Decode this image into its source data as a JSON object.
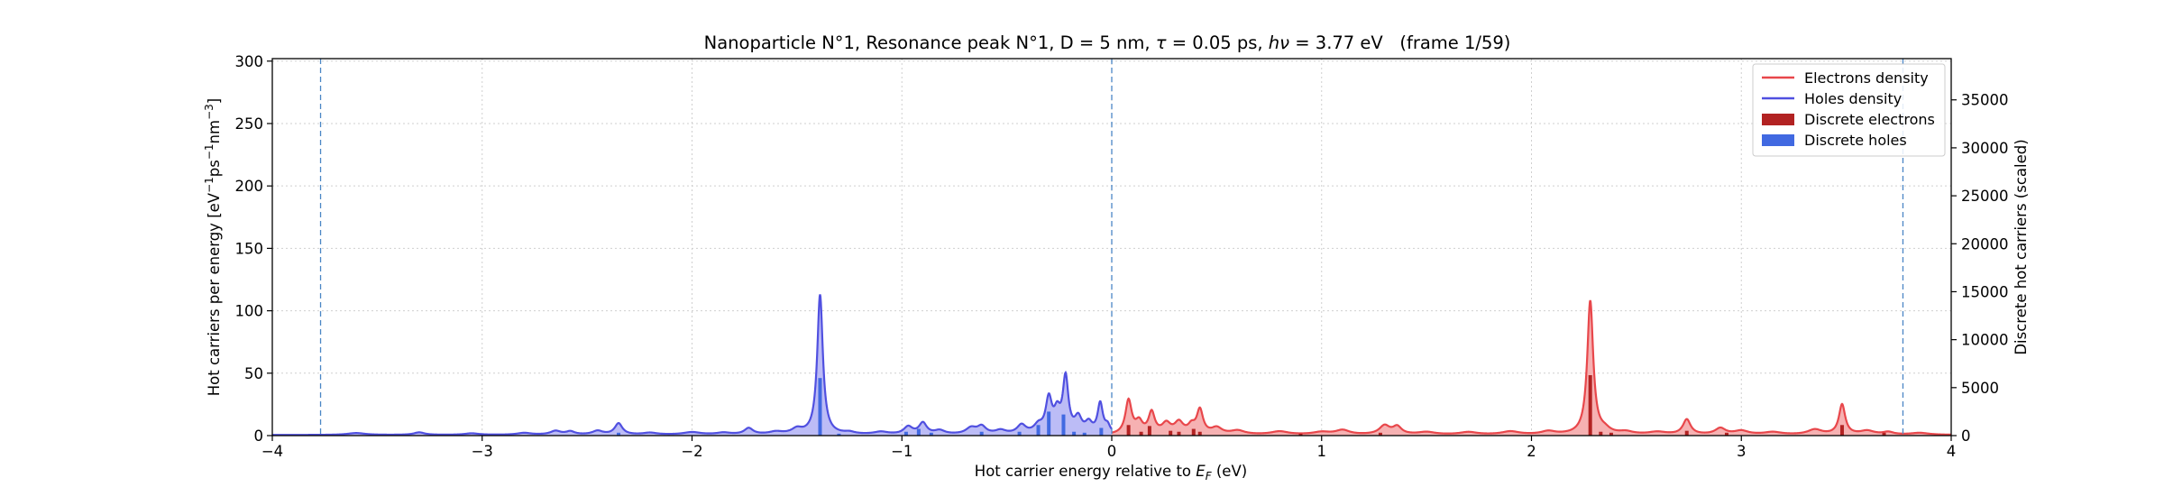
{
  "chart_data": {
    "type": "line",
    "title": "Nanoparticle N°1, Resonance peak N°1, D = 5 nm, τ = 0.05 ps, hν = 3.77 eV   (frame 1/59)",
    "title_parts": {
      "pre": "Nanoparticle N°1, Resonance peak N°1, D = 5 nm, ",
      "tau": "τ",
      "mid": " = 0.05 ps, ",
      "h": "h",
      "nu": "ν",
      "post": " = 3.77 eV   (frame 1/59)"
    },
    "xlabel": "Hot carrier energy relative to E_F (eV)",
    "xlabel_parts": {
      "pre": "Hot carrier energy relative to ",
      "E": "E",
      "sub": "F",
      "post": " (eV)"
    },
    "ylabel": "Hot carriers per energy [eV⁻¹ps⁻¹nm⁻³]",
    "ylabel_parts": {
      "a": "Hot carriers per energy [eV",
      "s1": "−1",
      "b": "ps",
      "s2": "−1",
      "c": "nm",
      "s3": "−3",
      "d": "]"
    },
    "y2label": "Discrete hot carriers (scaled)",
    "xlim": [
      -4,
      4
    ],
    "ylim": [
      0,
      302
    ],
    "y2lim": [
      0,
      39300
    ],
    "xticks": [
      -4,
      -3,
      -2,
      -1,
      0,
      1,
      2,
      3,
      4
    ],
    "xtick_labels": [
      "−4",
      "−3",
      "−2",
      "−1",
      "0",
      "1",
      "2",
      "3",
      "4"
    ],
    "yticks": [
      0,
      50,
      100,
      150,
      200,
      250,
      300
    ],
    "ytick_labels": [
      "0",
      "50",
      "100",
      "150",
      "200",
      "250",
      "300"
    ],
    "y2ticks": [
      0,
      5000,
      10000,
      15000,
      20000,
      25000,
      30000,
      35000
    ],
    "y2tick_labels": [
      "0",
      "5000",
      "10000",
      "15000",
      "20000",
      "25000",
      "30000",
      "35000"
    ],
    "vlines": [
      -3.77,
      0,
      3.77
    ],
    "grid": true,
    "legend": "top-right",
    "colors": {
      "electrons": "#e8474b",
      "electrons_fill": "#f4a3a5",
      "holes": "#5050e0",
      "holes_fill": "#b0b0f5",
      "discrete_electrons": "#b22222",
      "discrete_holes": "#4169e1",
      "vline": "#4a86c5"
    },
    "series": [
      {
        "name": "Holes density",
        "kind": "density",
        "baseline": 0.5,
        "peaks": [
          [
            -3.6,
            1.5,
            0.05
          ],
          [
            -3.3,
            2,
            0.03
          ],
          [
            -3.05,
            1.2,
            0.04
          ],
          [
            -2.8,
            1.5,
            0.04
          ],
          [
            -2.65,
            3,
            0.03
          ],
          [
            -2.58,
            2.5,
            0.025
          ],
          [
            -2.45,
            3,
            0.03
          ],
          [
            -2.35,
            9,
            0.022
          ],
          [
            -2.2,
            1.5,
            0.04
          ],
          [
            -2.0,
            2,
            0.05
          ],
          [
            -1.85,
            1.5,
            0.04
          ],
          [
            -1.73,
            5,
            0.025
          ],
          [
            -1.6,
            2,
            0.04
          ],
          [
            -1.5,
            4,
            0.03
          ],
          [
            -1.39,
            112,
            0.016
          ],
          [
            -1.25,
            1.5,
            0.03
          ],
          [
            -1.1,
            2,
            0.04
          ],
          [
            -0.97,
            6,
            0.025
          ],
          [
            -0.9,
            9,
            0.022
          ],
          [
            -0.82,
            3,
            0.03
          ],
          [
            -0.67,
            5,
            0.03
          ],
          [
            -0.62,
            6,
            0.025
          ],
          [
            -0.53,
            3,
            0.03
          ],
          [
            -0.43,
            7,
            0.025
          ],
          [
            -0.35,
            6,
            0.025
          ],
          [
            -0.3,
            27,
            0.018
          ],
          [
            -0.26,
            15,
            0.018
          ],
          [
            -0.22,
            44,
            0.016
          ],
          [
            -0.16,
            12,
            0.02
          ],
          [
            -0.11,
            8,
            0.02
          ],
          [
            -0.055,
            24,
            0.015
          ],
          [
            -0.02,
            6,
            0.015
          ]
        ]
      },
      {
        "name": "Electrons density",
        "kind": "density",
        "baseline": 0.5,
        "peaks": [
          [
            0.08,
            27,
            0.018
          ],
          [
            0.13,
            9,
            0.02
          ],
          [
            0.19,
            17,
            0.018
          ],
          [
            0.26,
            8,
            0.025
          ],
          [
            0.32,
            9,
            0.025
          ],
          [
            0.38,
            6,
            0.02
          ],
          [
            0.42,
            19,
            0.018
          ],
          [
            0.5,
            5,
            0.03
          ],
          [
            0.6,
            3,
            0.04
          ],
          [
            0.8,
            2.5,
            0.05
          ],
          [
            1.0,
            2,
            0.05
          ],
          [
            1.1,
            3.5,
            0.04
          ],
          [
            1.3,
            7,
            0.03
          ],
          [
            1.36,
            6,
            0.025
          ],
          [
            1.5,
            2,
            0.05
          ],
          [
            1.7,
            2,
            0.05
          ],
          [
            1.9,
            2.5,
            0.05
          ],
          [
            2.08,
            2.5,
            0.04
          ],
          [
            2.28,
            107,
            0.017
          ],
          [
            2.35,
            3,
            0.03
          ],
          [
            2.45,
            2,
            0.04
          ],
          [
            2.6,
            2,
            0.05
          ],
          [
            2.74,
            12,
            0.022
          ],
          [
            2.9,
            5,
            0.03
          ],
          [
            3.0,
            3,
            0.04
          ],
          [
            3.15,
            2,
            0.05
          ],
          [
            3.35,
            4,
            0.04
          ],
          [
            3.48,
            24,
            0.018
          ],
          [
            3.6,
            3,
            0.04
          ],
          [
            3.7,
            2,
            0.03
          ],
          [
            3.85,
            1.5,
            0.05
          ]
        ]
      },
      {
        "name": "Discrete holes",
        "kind": "bars",
        "axis": "right",
        "x": [
          -2.35,
          -1.39,
          -1.3,
          -0.98,
          -0.92,
          -0.86,
          -0.62,
          -0.44,
          -0.35,
          -0.3,
          -0.23,
          -0.18,
          -0.13,
          -0.05
        ],
        "values": [
          300,
          6000,
          200,
          400,
          700,
          300,
          400,
          400,
          1100,
          2500,
          2200,
          400,
          300,
          800
        ]
      },
      {
        "name": "Discrete electrons",
        "kind": "bars",
        "axis": "right",
        "x": [
          0.08,
          0.14,
          0.18,
          0.28,
          0.32,
          0.39,
          0.42,
          0.9,
          1.28,
          2.28,
          2.33,
          2.38,
          2.74,
          2.93,
          3.48,
          3.68
        ],
        "values": [
          1100,
          400,
          1000,
          500,
          400,
          700,
          400,
          200,
          300,
          6300,
          400,
          300,
          500,
          300,
          1100,
          300
        ]
      }
    ]
  }
}
